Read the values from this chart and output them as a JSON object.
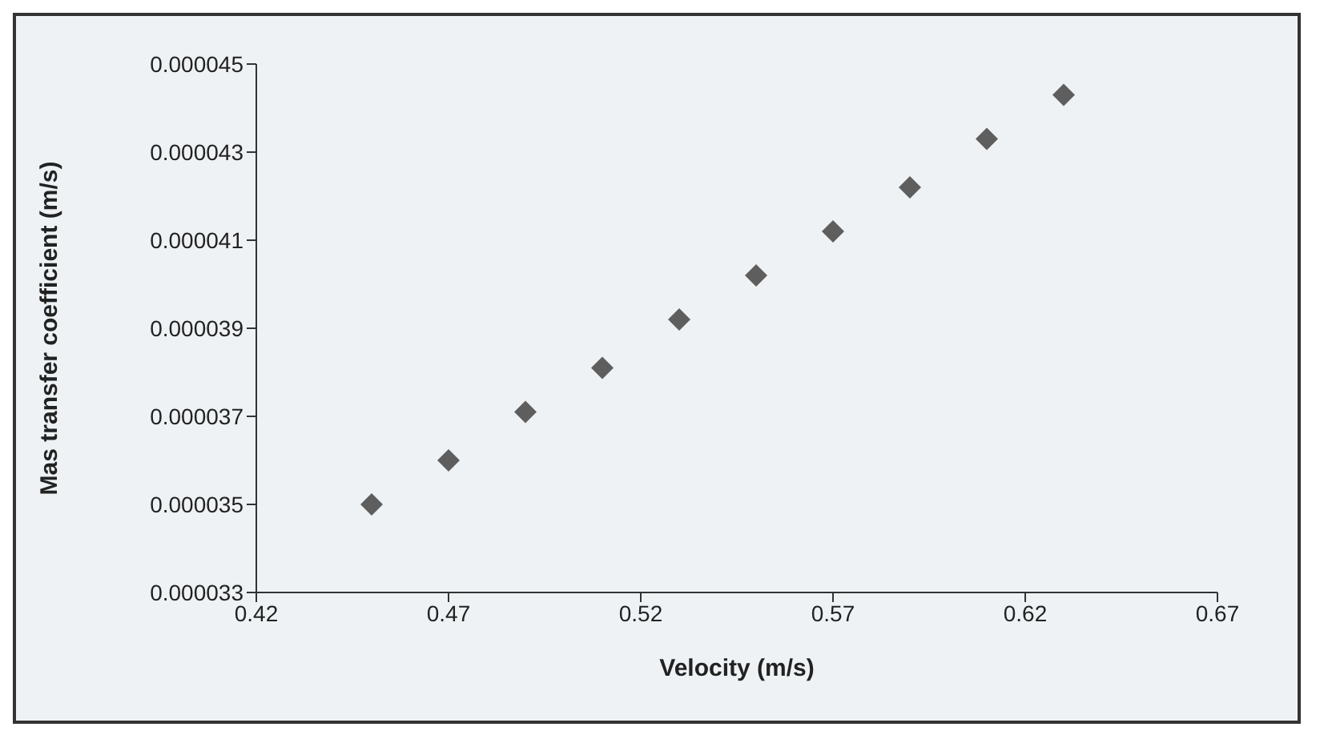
{
  "chart_data": {
    "type": "scatter",
    "xlabel": "Velocity (m/s)",
    "ylabel": "Mas transfer coefficient (m/s)",
    "x": [
      0.45,
      0.47,
      0.49,
      0.51,
      0.53,
      0.55,
      0.57,
      0.59,
      0.61,
      0.63
    ],
    "series": [
      {
        "color": "#5e5e5e",
        "values": [
          3.5e-05,
          3.6e-05,
          3.71e-05,
          3.81e-05,
          3.92e-05,
          4.02e-05,
          4.12e-05,
          4.22e-05,
          4.33e-05,
          4.43e-05
        ]
      }
    ],
    "xlim": [
      0.42,
      0.67
    ],
    "xticks": [
      0.42,
      0.47,
      0.52,
      0.57,
      0.62,
      0.67
    ],
    "ylim": [
      3.3e-05,
      4.5e-05
    ],
    "yticks": [
      {
        "value": 3.3e-05,
        "label": "0.000033"
      },
      {
        "value": 3.5e-05,
        "label": "0.000035"
      },
      {
        "value": 3.7e-05,
        "label": "0.000037"
      },
      {
        "value": 3.9e-05,
        "label": "0.000039"
      },
      {
        "value": 4.1e-05,
        "label": "0.000041"
      },
      {
        "value": 4.3e-05,
        "label": "0.000043"
      },
      {
        "value": 4.5e-05,
        "label": "0.000045"
      }
    ],
    "grid": false,
    "legend": false,
    "marker": "diamond"
  }
}
